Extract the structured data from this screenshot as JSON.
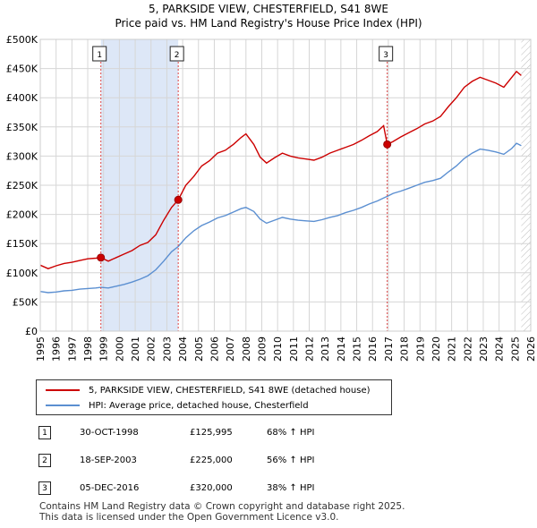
{
  "title_line1": "5, PARKSIDE VIEW, CHESTERFIELD, S41 8WE",
  "title_line2": "Price paid vs. HM Land Registry's House Price Index (HPI)",
  "colors": {
    "property": "#cc0000",
    "hpi": "#5b8fd1",
    "shade": "#dde7f7",
    "grid": "#d6d6d6"
  },
  "chart_data": {
    "type": "line",
    "title": "Price paid vs. HM Land Registry's House Price Index (HPI)",
    "xlim": [
      1995,
      2026
    ],
    "ylim": [
      0,
      500000
    ],
    "x_ticks": [
      "1995",
      "1996",
      "1997",
      "1998",
      "1999",
      "2000",
      "2001",
      "2002",
      "2003",
      "2004",
      "2005",
      "2006",
      "2007",
      "2008",
      "2009",
      "2010",
      "2011",
      "2012",
      "2013",
      "2014",
      "2015",
      "2016",
      "2017",
      "2018",
      "2019",
      "2020",
      "2021",
      "2022",
      "2023",
      "2024",
      "2025",
      "2026"
    ],
    "y_ticks": [
      {
        "value": 0,
        "label": "£0"
      },
      {
        "value": 50000,
        "label": "£50K"
      },
      {
        "value": 100000,
        "label": "£100K"
      },
      {
        "value": 150000,
        "label": "£150K"
      },
      {
        "value": 200000,
        "label": "£200K"
      },
      {
        "value": 250000,
        "label": "£250K"
      },
      {
        "value": 300000,
        "label": "£300K"
      },
      {
        "value": 350000,
        "label": "£350K"
      },
      {
        "value": 400000,
        "label": "£400K"
      },
      {
        "value": 450000,
        "label": "£450K"
      },
      {
        "value": 500000,
        "label": "£500K"
      }
    ],
    "shaded_regions": [
      [
        1998.83,
        2003.72
      ],
      [
        2016.93,
        2016.93
      ]
    ],
    "series": [
      {
        "name": "5, PARKSIDE VIEW, CHESTERFIELD, S41 8WE (detached house)",
        "color": "#cc0000",
        "points": [
          [
            1995.0,
            113000
          ],
          [
            1995.5,
            107000
          ],
          [
            1996.0,
            112000
          ],
          [
            1996.5,
            116000
          ],
          [
            1997.0,
            118000
          ],
          [
            1997.5,
            121000
          ],
          [
            1998.0,
            124000
          ],
          [
            1998.5,
            125000
          ],
          [
            1998.83,
            125995
          ],
          [
            1999.3,
            120000
          ],
          [
            1999.8,
            126000
          ],
          [
            2000.3,
            132000
          ],
          [
            2000.8,
            138000
          ],
          [
            2001.3,
            147000
          ],
          [
            2001.8,
            152000
          ],
          [
            2002.3,
            165000
          ],
          [
            2002.8,
            190000
          ],
          [
            2003.3,
            212000
          ],
          [
            2003.72,
            225000
          ],
          [
            2004.2,
            250000
          ],
          [
            2004.7,
            265000
          ],
          [
            2005.2,
            283000
          ],
          [
            2005.7,
            292000
          ],
          [
            2006.2,
            305000
          ],
          [
            2006.7,
            310000
          ],
          [
            2007.2,
            320000
          ],
          [
            2007.7,
            332000
          ],
          [
            2008.0,
            338000
          ],
          [
            2008.5,
            320000
          ],
          [
            2008.9,
            298000
          ],
          [
            2009.3,
            288000
          ],
          [
            2009.8,
            297000
          ],
          [
            2010.3,
            305000
          ],
          [
            2010.8,
            300000
          ],
          [
            2011.3,
            297000
          ],
          [
            2011.8,
            295000
          ],
          [
            2012.3,
            293000
          ],
          [
            2012.8,
            298000
          ],
          [
            2013.3,
            305000
          ],
          [
            2013.8,
            310000
          ],
          [
            2014.3,
            315000
          ],
          [
            2014.8,
            320000
          ],
          [
            2015.3,
            327000
          ],
          [
            2015.8,
            335000
          ],
          [
            2016.3,
            342000
          ],
          [
            2016.7,
            352000
          ],
          [
            2016.93,
            320000
          ],
          [
            2017.3,
            325000
          ],
          [
            2017.8,
            333000
          ],
          [
            2018.3,
            340000
          ],
          [
            2018.8,
            347000
          ],
          [
            2019.3,
            355000
          ],
          [
            2019.8,
            360000
          ],
          [
            2020.3,
            368000
          ],
          [
            2020.8,
            385000
          ],
          [
            2021.3,
            400000
          ],
          [
            2021.8,
            418000
          ],
          [
            2022.3,
            428000
          ],
          [
            2022.8,
            435000
          ],
          [
            2023.3,
            430000
          ],
          [
            2023.8,
            425000
          ],
          [
            2024.3,
            418000
          ],
          [
            2024.8,
            435000
          ],
          [
            2025.1,
            445000
          ],
          [
            2025.4,
            438000
          ]
        ]
      },
      {
        "name": "HPI: Average price, detached house, Chesterfield",
        "color": "#5b8fd1",
        "points": [
          [
            1995.0,
            68000
          ],
          [
            1995.5,
            66000
          ],
          [
            1996.0,
            67000
          ],
          [
            1996.5,
            69000
          ],
          [
            1997.0,
            70000
          ],
          [
            1997.5,
            72000
          ],
          [
            1998.0,
            73000
          ],
          [
            1998.5,
            74000
          ],
          [
            1998.83,
            75000
          ],
          [
            1999.3,
            74000
          ],
          [
            1999.8,
            77000
          ],
          [
            2000.3,
            80000
          ],
          [
            2000.8,
            84000
          ],
          [
            2001.3,
            89000
          ],
          [
            2001.8,
            95000
          ],
          [
            2002.3,
            105000
          ],
          [
            2002.8,
            120000
          ],
          [
            2003.3,
            136000
          ],
          [
            2003.72,
            145000
          ],
          [
            2004.2,
            160000
          ],
          [
            2004.7,
            172000
          ],
          [
            2005.2,
            181000
          ],
          [
            2005.7,
            187000
          ],
          [
            2006.2,
            194000
          ],
          [
            2006.7,
            198000
          ],
          [
            2007.2,
            204000
          ],
          [
            2007.7,
            210000
          ],
          [
            2008.0,
            212000
          ],
          [
            2008.5,
            205000
          ],
          [
            2008.9,
            192000
          ],
          [
            2009.3,
            185000
          ],
          [
            2009.8,
            190000
          ],
          [
            2010.3,
            195000
          ],
          [
            2010.8,
            192000
          ],
          [
            2011.3,
            190000
          ],
          [
            2011.8,
            189000
          ],
          [
            2012.3,
            188000
          ],
          [
            2012.8,
            191000
          ],
          [
            2013.3,
            195000
          ],
          [
            2013.8,
            198000
          ],
          [
            2014.3,
            203000
          ],
          [
            2014.8,
            207000
          ],
          [
            2015.3,
            212000
          ],
          [
            2015.8,
            218000
          ],
          [
            2016.3,
            223000
          ],
          [
            2016.7,
            228000
          ],
          [
            2016.93,
            231000
          ],
          [
            2017.3,
            236000
          ],
          [
            2017.8,
            240000
          ],
          [
            2018.3,
            245000
          ],
          [
            2018.8,
            250000
          ],
          [
            2019.3,
            255000
          ],
          [
            2019.8,
            258000
          ],
          [
            2020.3,
            262000
          ],
          [
            2020.8,
            273000
          ],
          [
            2021.3,
            283000
          ],
          [
            2021.8,
            296000
          ],
          [
            2022.3,
            305000
          ],
          [
            2022.8,
            312000
          ],
          [
            2023.3,
            310000
          ],
          [
            2023.8,
            307000
          ],
          [
            2024.3,
            303000
          ],
          [
            2024.8,
            313000
          ],
          [
            2025.1,
            322000
          ],
          [
            2025.4,
            318000
          ]
        ]
      }
    ],
    "sales": [
      {
        "id": "1",
        "x": 1998.83,
        "price": 125995
      },
      {
        "id": "2",
        "x": 2003.72,
        "price": 225000
      },
      {
        "id": "3",
        "x": 2016.93,
        "price": 320000
      }
    ]
  },
  "legend": {
    "property_label": "5, PARKSIDE VIEW, CHESTERFIELD, S41 8WE (detached house)",
    "hpi_label": "HPI: Average price, detached house, Chesterfield"
  },
  "sales_table": [
    {
      "num": "1",
      "date": "30-OCT-1998",
      "price": "£125,995",
      "hpi": "68% ↑ HPI"
    },
    {
      "num": "2",
      "date": "18-SEP-2003",
      "price": "£225,000",
      "hpi": "56% ↑ HPI"
    },
    {
      "num": "3",
      "date": "05-DEC-2016",
      "price": "£320,000",
      "hpi": "38% ↑ HPI"
    }
  ],
  "footer_line1": "Contains HM Land Registry data © Crown copyright and database right 2025.",
  "footer_line2": "This data is licensed under the Open Government Licence v3.0."
}
